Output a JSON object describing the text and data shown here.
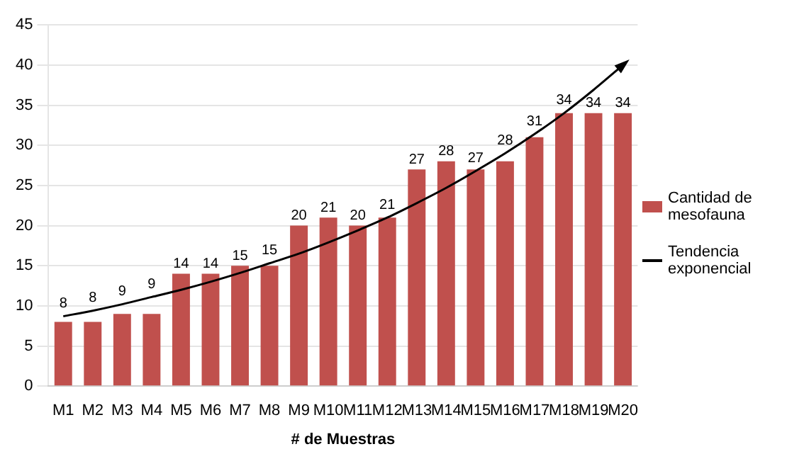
{
  "chart_data": {
    "type": "bar",
    "xlabel": "# de Muestras",
    "categories": [
      "M1",
      "M2",
      "M3",
      "M4",
      "M5",
      "M6",
      "M7",
      "M8",
      "M9",
      "M10",
      "M11",
      "M12",
      "M13",
      "M14",
      "M15",
      "M16",
      "M17",
      "M18",
      "M19",
      "M20"
    ],
    "series": [
      {
        "name": "Cantidad de mesofauna",
        "color": "#c0504d",
        "values": [
          8,
          8,
          9,
          9,
          14,
          14,
          15,
          15,
          20,
          21,
          20,
          21,
          27,
          28,
          27,
          28,
          31,
          34,
          34,
          34
        ],
        "value_labels": [
          "8",
          "8",
          "9",
          "9",
          "14",
          "14",
          "15",
          "15",
          "20",
          "21",
          "20",
          "21",
          "27",
          "28",
          "27",
          "28",
          "31",
          "34",
          "34",
          "34"
        ]
      },
      {
        "name": "Tendencia exponencial",
        "type": "line",
        "color": "#000000",
        "marker": "none",
        "values": [
          8.7,
          9.4,
          10.2,
          11.1,
          12.0,
          13.0,
          14.1,
          15.3,
          16.5,
          17.9,
          19.4,
          21.0,
          22.8,
          24.7,
          26.8,
          29.0,
          31.4,
          34.0,
          36.9,
          40.0
        ]
      }
    ],
    "ylim": [
      0,
      45
    ],
    "yticks": [
      0,
      5,
      10,
      15,
      20,
      25,
      30,
      35,
      40,
      45
    ],
    "grid": "y",
    "legend": "right"
  }
}
